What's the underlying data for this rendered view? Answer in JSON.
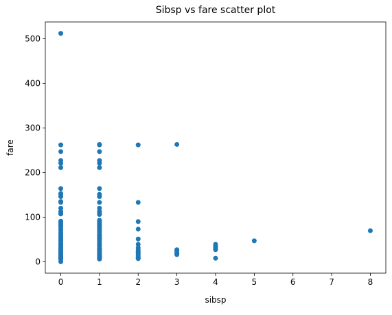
{
  "chart_data": {
    "type": "scatter",
    "title": "Sibsp vs fare scatter plot",
    "x_label": "sibsp",
    "y_label": "fare",
    "color": "#1f77b4",
    "x": [
      0,
      0,
      0,
      0,
      0,
      0,
      0,
      0,
      0,
      0,
      0,
      0,
      0,
      0,
      0,
      0,
      0,
      0,
      0,
      0,
      0,
      0,
      0,
      0,
      0,
      0,
      0,
      0,
      0,
      0,
      0,
      0,
      0,
      0,
      0,
      0,
      0,
      0,
      0,
      0,
      0,
      0,
      0,
      0,
      0,
      0,
      0,
      0,
      0,
      0,
      1,
      1,
      1,
      1,
      1,
      1,
      1,
      1,
      1,
      1,
      1,
      1,
      1,
      1,
      1,
      1,
      1,
      1,
      1,
      1,
      1,
      1,
      1,
      1,
      1,
      1,
      1,
      1,
      1,
      1,
      1,
      1,
      1,
      1,
      1,
      1,
      1,
      1,
      1,
      1,
      1,
      1,
      1,
      1,
      1,
      1,
      1,
      1,
      1,
      1,
      1,
      2,
      2,
      2,
      2,
      2,
      2,
      2,
      2,
      2,
      2,
      2,
      2,
      2,
      2,
      2,
      2,
      3,
      3,
      3,
      3,
      3,
      3,
      4,
      4,
      4,
      4,
      4,
      4,
      5,
      8
    ],
    "values": [
      0,
      5,
      7.25,
      7.75,
      8,
      9,
      10.5,
      12,
      13,
      15,
      16,
      18,
      21,
      23,
      26,
      27,
      30,
      31,
      35,
      38,
      42,
      47,
      50,
      53,
      57,
      61,
      66,
      71,
      76,
      80,
      83,
      86,
      89,
      91,
      107,
      110,
      113,
      120,
      133,
      135,
      146,
      151,
      153,
      164,
      211,
      221,
      227,
      247,
      262,
      512,
      6,
      7,
      8,
      9,
      10,
      11,
      13,
      15,
      16,
      17,
      19,
      21,
      24,
      26,
      27,
      29,
      30,
      35,
      39,
      41,
      46,
      49,
      52,
      55,
      57,
      59,
      61,
      66,
      69,
      73,
      76,
      79,
      82,
      86,
      89,
      91,
      93,
      106,
      110,
      113,
      120,
      133,
      146,
      151,
      164,
      211,
      221,
      227,
      247,
      262,
      263,
      7,
      8,
      9,
      11,
      14,
      18,
      21,
      23,
      26,
      31,
      39,
      51,
      73,
      90,
      133,
      262,
      15.9,
      18,
      21,
      25,
      27,
      263,
      7.9,
      27,
      29,
      32,
      35,
      39,
      46.9,
      69.55
    ],
    "xlim": [
      -0.4,
      8.4
    ],
    "xticks": [
      0,
      1,
      2,
      3,
      4,
      5,
      6,
      7,
      8
    ],
    "ylim": [
      -25.6,
      537.6
    ],
    "yticks": [
      0,
      100,
      200,
      300,
      400,
      500
    ]
  }
}
